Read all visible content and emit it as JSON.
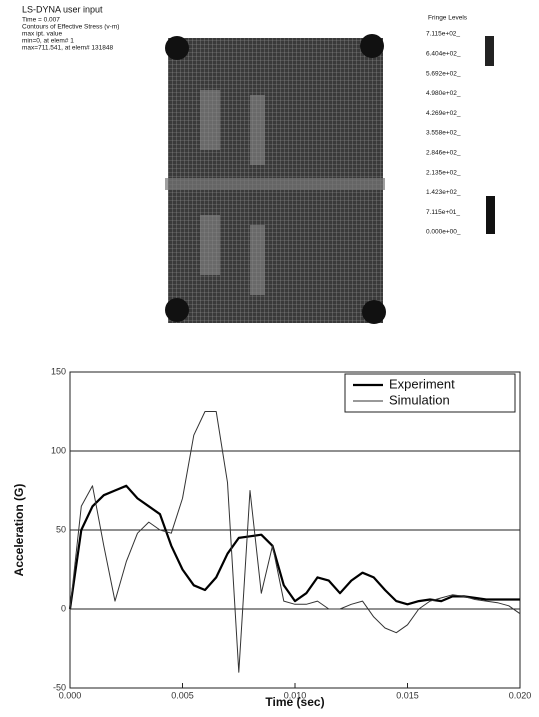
{
  "model_view": {
    "title": "LS-DYNA user input",
    "lines": [
      "Time = 0.007",
      "Contours of Effective Stress (v-m)",
      "max ipt. value",
      "min=0, at elem# 1",
      "max=711.541, at elem# 131848"
    ],
    "fringe_title": "Fringe Levels",
    "fringe_levels": [
      "7.115e+02_",
      "6.404e+02_",
      "5.692e+02_",
      "4.980e+02_",
      "4.269e+02_",
      "3.558e+02_",
      "2.846e+02_",
      "2.135e+02_",
      "1.423e+02_",
      "7.115e+01_",
      "0.000e+00_"
    ]
  },
  "chart_data": {
    "type": "line",
    "xlabel": "Time (sec)",
    "ylabel": "Acceleration (G)",
    "x": [
      0,
      0.0005,
      0.001,
      0.0015,
      0.002,
      0.0025,
      0.003,
      0.0035,
      0.004,
      0.0045,
      0.005,
      0.0055,
      0.006,
      0.0065,
      0.007,
      0.0075,
      0.008,
      0.0085,
      0.009,
      0.0095,
      0.01,
      0.0105,
      0.011,
      0.0115,
      0.012,
      0.0125,
      0.013,
      0.0135,
      0.014,
      0.0145,
      0.015,
      0.0155,
      0.016,
      0.0165,
      0.017,
      0.0175,
      0.018,
      0.0185,
      0.019,
      0.0195,
      0.02
    ],
    "series": [
      {
        "name": "Experiment",
        "color": "#000000",
        "values": [
          0,
          50,
          65,
          72,
          75,
          78,
          70,
          65,
          60,
          40,
          25,
          15,
          12,
          20,
          35,
          45,
          46,
          47,
          40,
          15,
          5,
          10,
          20,
          18,
          10,
          18,
          23,
          20,
          12,
          5,
          3,
          5,
          6,
          5,
          8,
          8,
          7,
          6,
          6,
          6,
          6
        ]
      },
      {
        "name": "Simulation",
        "color": "#333333",
        "values": [
          0,
          65,
          78,
          40,
          5,
          30,
          48,
          55,
          50,
          48,
          70,
          110,
          125,
          125,
          80,
          -40,
          75,
          10,
          40,
          5,
          3,
          3,
          5,
          0,
          0,
          3,
          5,
          -5,
          -12,
          -15,
          -10,
          0,
          5,
          7,
          9,
          8,
          6,
          5,
          4,
          2,
          -3
        ]
      }
    ],
    "xlim": [
      0,
      0.02
    ],
    "xticks": [
      {
        "value": 0,
        "label": "0.000"
      },
      {
        "value": 0.005,
        "label": "0.005"
      },
      {
        "value": 0.01,
        "label": "0.010"
      },
      {
        "value": 0.015,
        "label": "0.015"
      },
      {
        "value": 0.02,
        "label": "0.020"
      }
    ],
    "ylim": [
      -50,
      150
    ],
    "yticks": [
      -50,
      0,
      50,
      100,
      150
    ],
    "grid": "y",
    "legend": "upper right"
  }
}
